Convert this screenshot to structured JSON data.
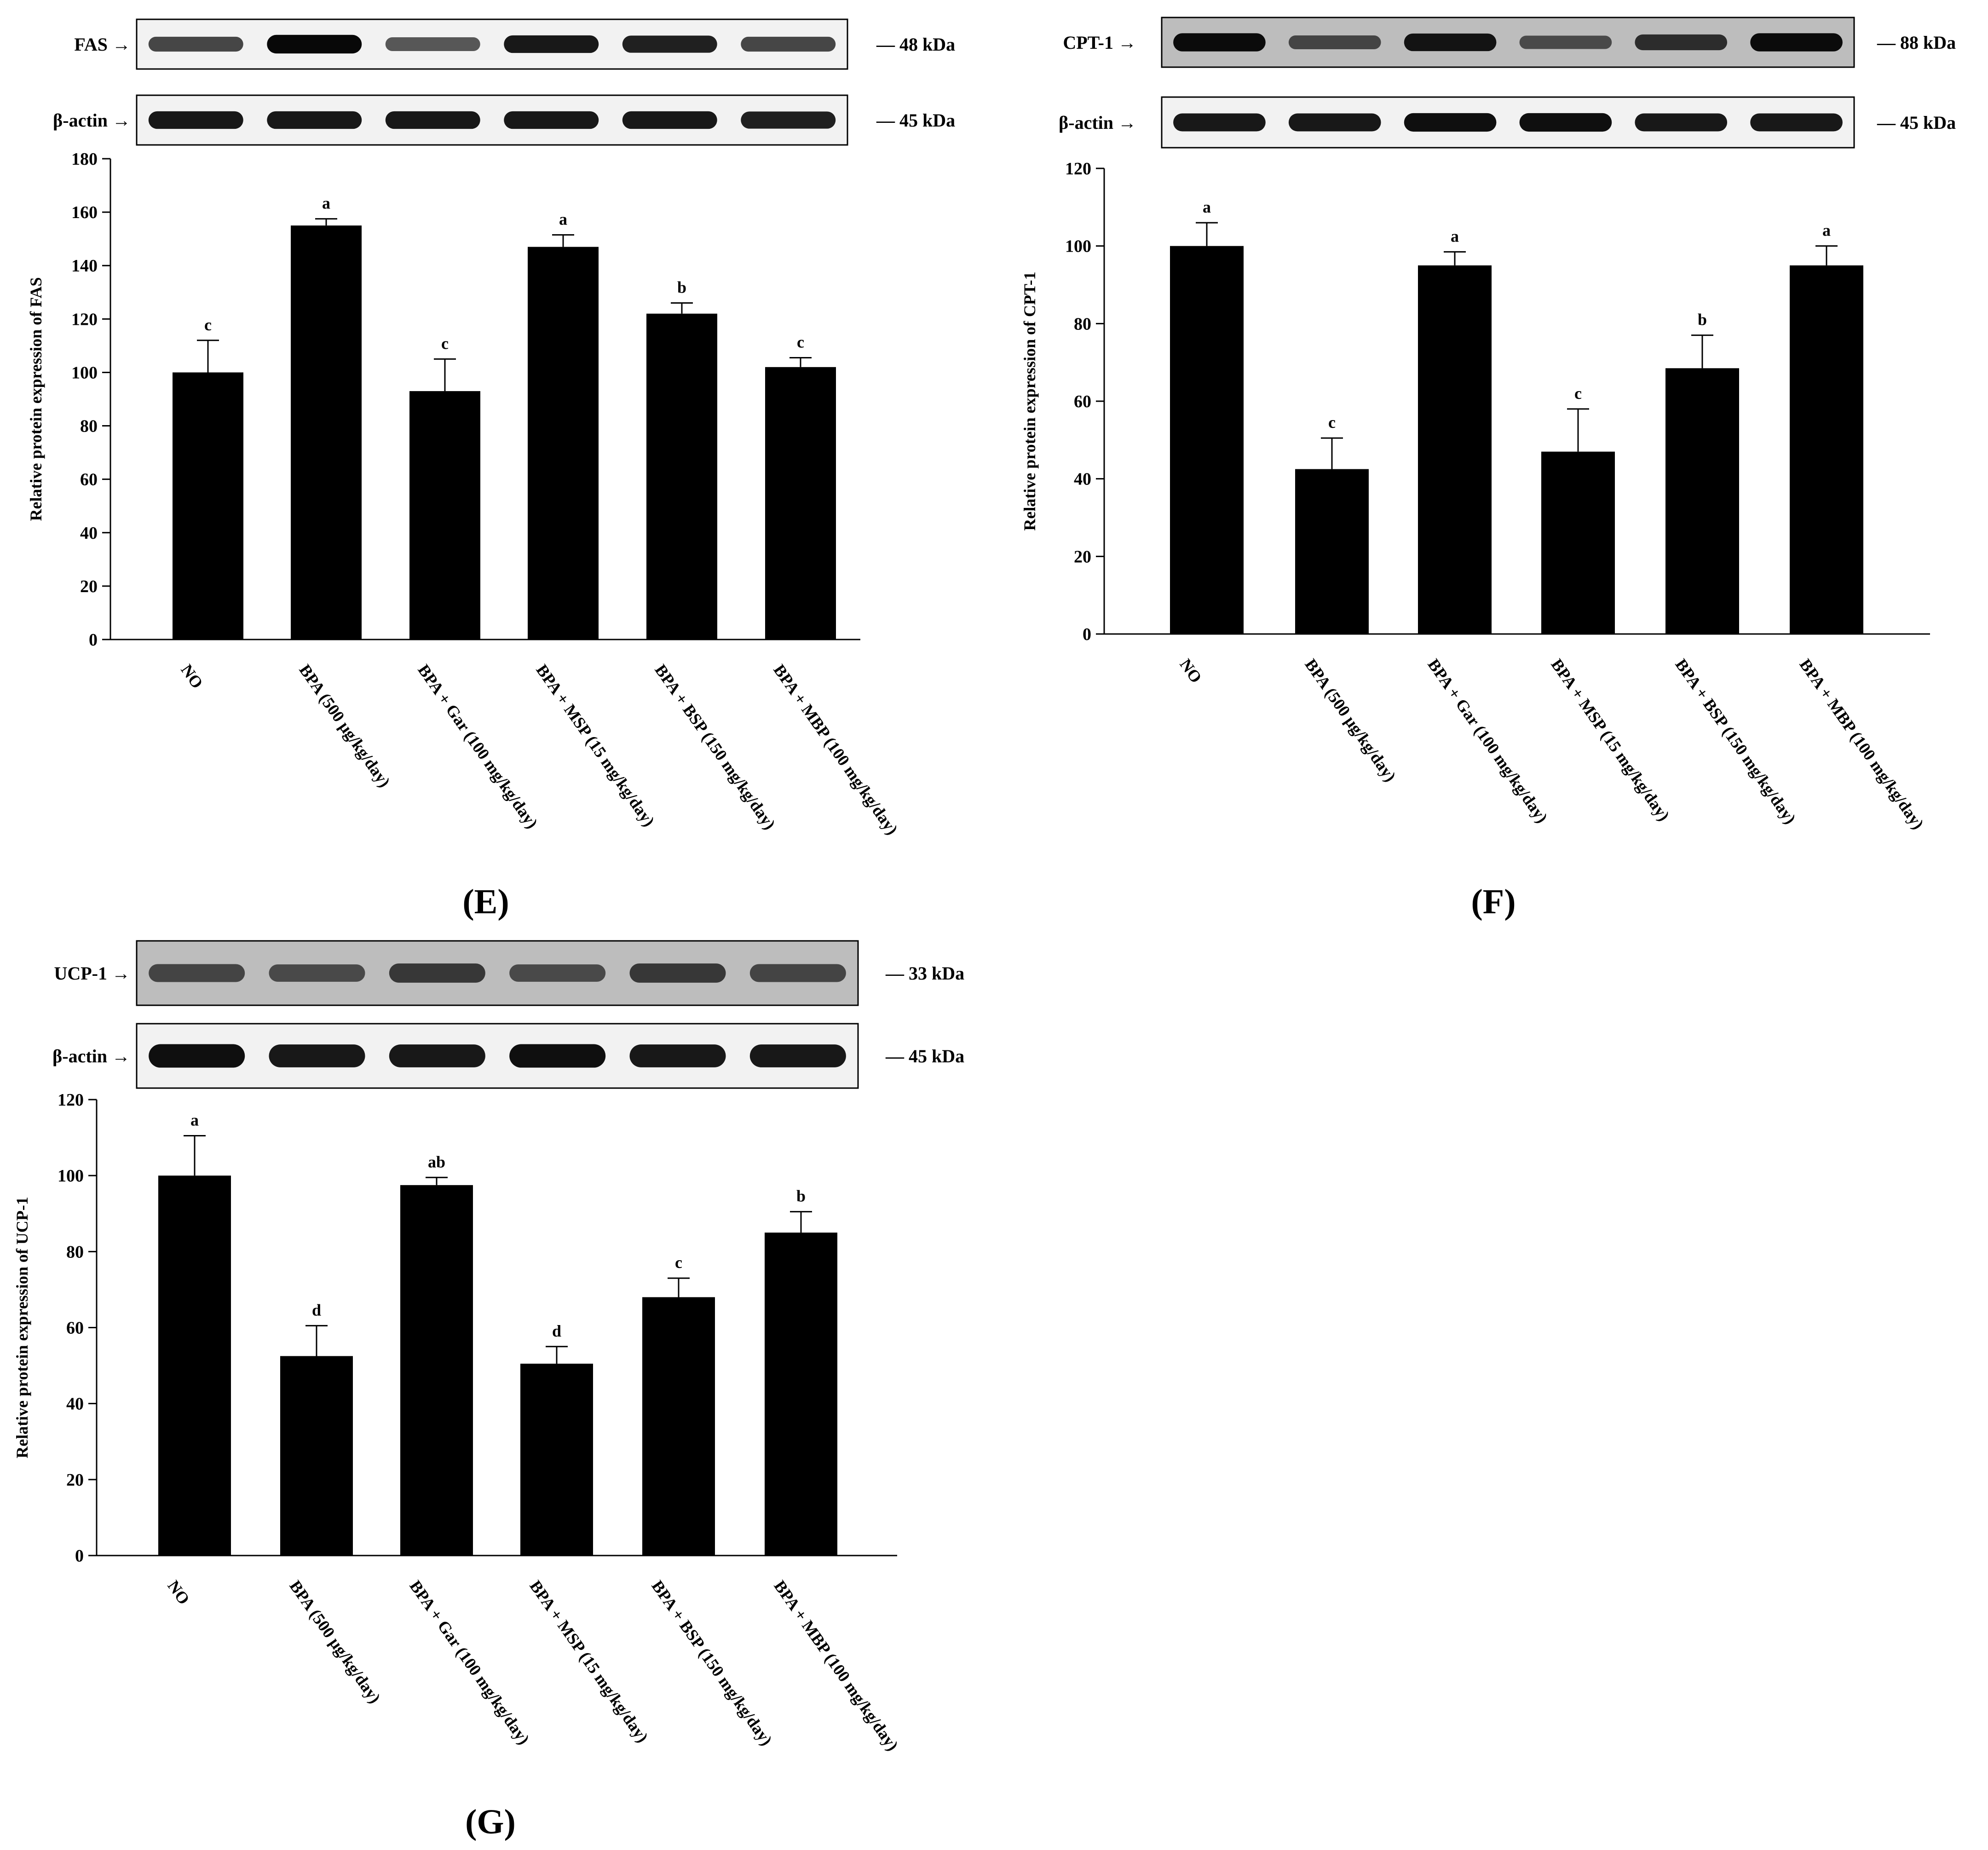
{
  "chart_data": [
    {
      "panel": "(E)",
      "type": "bar",
      "ylabel": "Relative protein expression of FAS",
      "ylim": [
        0,
        180
      ],
      "yticks": [
        0,
        20,
        40,
        60,
        80,
        100,
        120,
        140,
        160,
        180
      ],
      "categories": [
        "NO",
        "BPA (500 μg/kg/day)",
        "BPA + Gar (100 mg/kg/day)",
        "BPA + MSP (15 mg/kg/day)",
        "BPA + BSP (150 mg/kg/day)",
        "BPA + MBP (100 mg/kg/day)"
      ],
      "values": [
        100,
        155,
        93,
        147,
        122,
        102
      ],
      "errors": [
        12,
        2.5,
        12,
        4.5,
        4,
        3.5
      ],
      "letters": [
        "c",
        "a",
        "c",
        "a",
        "b",
        "c"
      ],
      "blots": [
        {
          "label": "FAS →",
          "kda": "— 48 kDa",
          "bands": [
            0.55,
            0.95,
            0.45,
            0.85,
            0.8,
            0.55
          ]
        },
        {
          "label": "β-actin →",
          "kda": "— 45 kDa",
          "bands": [
            0.85,
            0.85,
            0.85,
            0.85,
            0.85,
            0.8
          ]
        }
      ]
    },
    {
      "panel": "(F)",
      "type": "bar",
      "ylabel": "Relative protein expression of CPT-1",
      "ylim": [
        0,
        120
      ],
      "yticks": [
        0,
        20,
        40,
        60,
        80,
        100,
        120
      ],
      "categories": [
        "NO",
        "BPA (500 μg/kg/day)",
        "BPA + Gar (100 mg/kg/day)",
        "BPA + MSP (15 mg/kg/day)",
        "BPA + BSP (150 mg/kg/day)",
        "BPA + MBP (100 mg/kg/day)"
      ],
      "values": [
        100,
        42.5,
        95,
        47,
        68.5,
        95
      ],
      "errors": [
        6,
        8,
        3.5,
        11,
        8.5,
        5
      ],
      "letters": [
        "a",
        "c",
        "a",
        "c",
        "b",
        "a"
      ],
      "blots": [
        {
          "label": "CPT-1 →",
          "kda": "— 88 kDa",
          "bands": [
            0.9,
            0.45,
            0.85,
            0.4,
            0.65,
            0.9
          ]
        },
        {
          "label": "β-actin →",
          "kda": "— 45 kDa",
          "bands": [
            0.85,
            0.85,
            0.9,
            0.9,
            0.85,
            0.85
          ]
        }
      ]
    },
    {
      "panel": "(G)",
      "type": "bar",
      "ylabel": "Relative protein expression of UCP-1",
      "ylim": [
        0,
        120
      ],
      "yticks": [
        0,
        20,
        40,
        60,
        80,
        100,
        120
      ],
      "categories": [
        "NO",
        "BPA (500 μg/kg/day)",
        "BPA + Gar (100 mg/kg/day)",
        "BPA + MSP (15 mg/kg/day)",
        "BPA + BSP (150 mg/kg/day)",
        "BPA + MBP (100 mg/kg/day)"
      ],
      "values": [
        100,
        52.5,
        97.5,
        50.5,
        68,
        85
      ],
      "errors": [
        10.5,
        8,
        2,
        4.5,
        5,
        5.5
      ],
      "letters": [
        "a",
        "d",
        "ab",
        "d",
        "c",
        "b"
      ],
      "blots": [
        {
          "label": "UCP-1 →",
          "kda": "— 33 kDa",
          "bands": [
            0.45,
            0.4,
            0.55,
            0.4,
            0.55,
            0.45
          ]
        },
        {
          "label": "β-actin →",
          "kda": "— 45 kDa",
          "bands": [
            0.9,
            0.85,
            0.85,
            0.9,
            0.85,
            0.85
          ]
        }
      ]
    }
  ]
}
